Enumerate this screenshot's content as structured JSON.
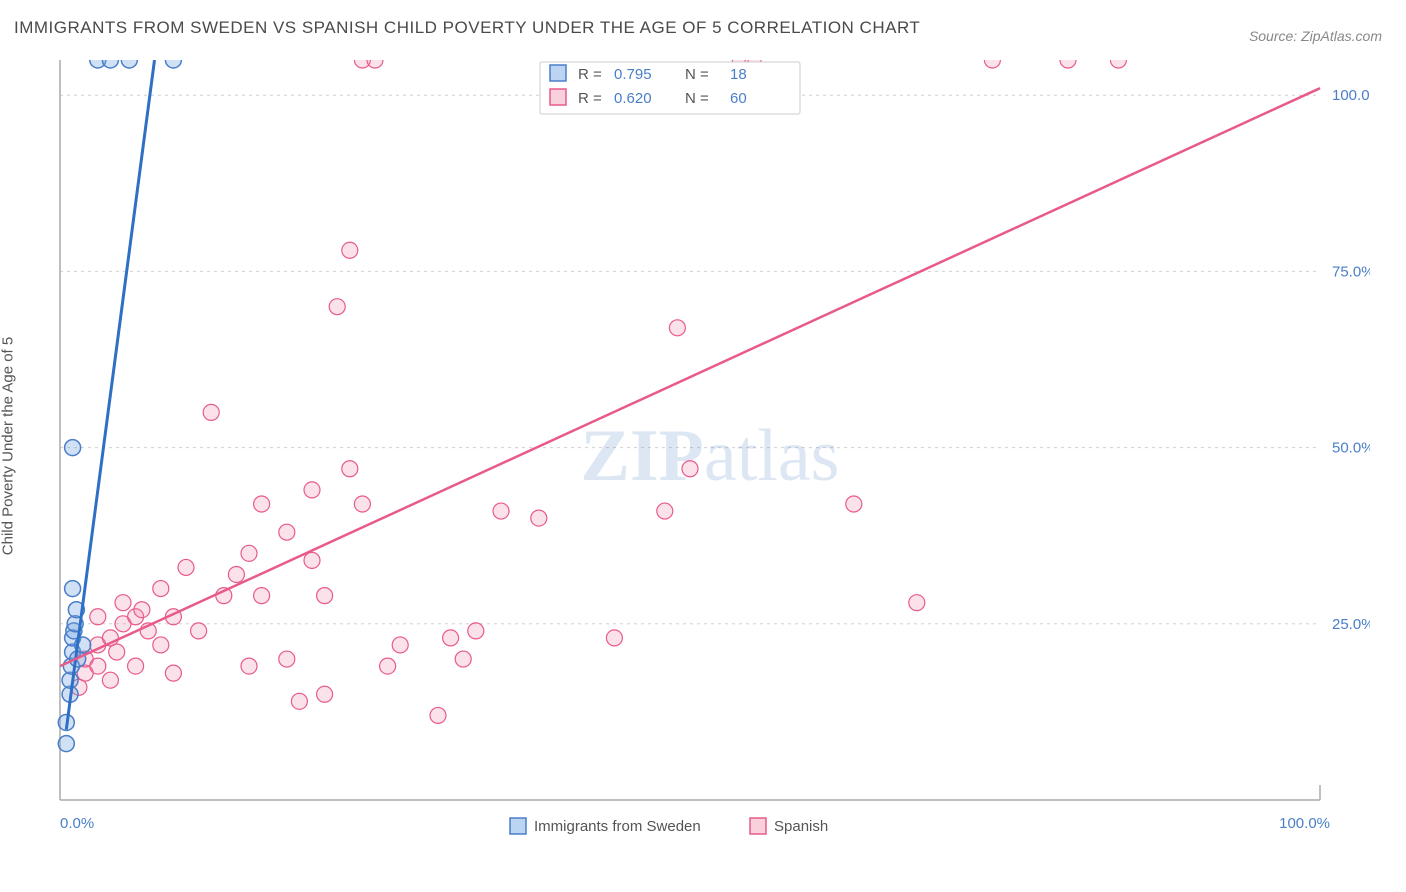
{
  "title": "IMMIGRANTS FROM SWEDEN VS SPANISH CHILD POVERTY UNDER THE AGE OF 5 CORRELATION CHART",
  "source_label": "Source: ZipAtlas.com",
  "y_axis_label": "Child Poverty Under the Age of 5",
  "watermark": {
    "part1": "ZIP",
    "part2": "atlas"
  },
  "chart": {
    "type": "scatter",
    "xlim": [
      0,
      100
    ],
    "ylim": [
      0,
      105
    ],
    "x_ticks": [
      0,
      100
    ],
    "x_tick_labels": [
      "0.0%",
      "100.0%"
    ],
    "y_ticks": [
      25,
      50,
      75,
      100
    ],
    "y_tick_labels": [
      "25.0%",
      "50.0%",
      "75.0%",
      "100.0%"
    ],
    "grid_y": [
      25,
      50,
      75,
      100
    ],
    "background_color": "#ffffff",
    "grid_color": "#d0d0d0",
    "marker_radius": 8,
    "series": [
      {
        "name": "Immigrants from Sweden",
        "color_fill": "rgba(120,170,230,0.35)",
        "color_stroke": "#4a7ec8",
        "line_color": "#2f6fc4",
        "R": 0.795,
        "N": 18,
        "regression": {
          "x1": 0.5,
          "y1": 10,
          "x2": 7.5,
          "y2": 105
        },
        "points": [
          [
            0.5,
            8
          ],
          [
            0.5,
            11
          ],
          [
            0.8,
            15
          ],
          [
            0.8,
            17
          ],
          [
            0.9,
            19
          ],
          [
            1.0,
            21
          ],
          [
            1.0,
            23
          ],
          [
            1.1,
            24
          ],
          [
            1.2,
            25
          ],
          [
            1.3,
            27
          ],
          [
            1.0,
            30
          ],
          [
            1.4,
            20
          ],
          [
            1.0,
            50
          ],
          [
            1.8,
            22
          ],
          [
            3.0,
            105
          ],
          [
            4.0,
            105
          ],
          [
            5.5,
            105
          ],
          [
            9.0,
            105
          ]
        ]
      },
      {
        "name": "Spanish",
        "color_fill": "rgba(240,140,170,0.25)",
        "color_stroke": "#e85a8a",
        "line_color": "#e85a8a",
        "R": 0.62,
        "N": 60,
        "regression": {
          "x1": 0,
          "y1": 19,
          "x2": 100,
          "y2": 101
        },
        "points": [
          [
            2,
            18
          ],
          [
            2,
            20
          ],
          [
            3,
            19
          ],
          [
            3,
            22
          ],
          [
            3,
            26
          ],
          [
            4,
            17
          ],
          [
            4,
            23
          ],
          [
            5,
            25
          ],
          [
            5,
            28
          ],
          [
            6,
            19
          ],
          [
            6,
            26
          ],
          [
            7,
            24
          ],
          [
            8,
            22
          ],
          [
            8,
            30
          ],
          [
            9,
            18
          ],
          [
            9,
            26
          ],
          [
            10,
            33
          ],
          [
            11,
            24
          ],
          [
            12,
            55
          ],
          [
            13,
            29
          ],
          [
            14,
            32
          ],
          [
            15,
            19
          ],
          [
            15,
            35
          ],
          [
            16,
            29
          ],
          [
            18,
            20
          ],
          [
            18,
            38
          ],
          [
            19,
            14
          ],
          [
            20,
            34
          ],
          [
            20,
            44
          ],
          [
            21,
            15
          ],
          [
            21,
            29
          ],
          [
            22,
            70
          ],
          [
            23,
            78
          ],
          [
            23,
            47
          ],
          [
            24,
            42
          ],
          [
            24,
            105
          ],
          [
            25,
            105
          ],
          [
            26,
            19
          ],
          [
            27,
            22
          ],
          [
            30,
            12
          ],
          [
            31,
            23
          ],
          [
            32,
            20
          ],
          [
            33,
            24
          ],
          [
            35,
            41
          ],
          [
            38,
            40
          ],
          [
            44,
            23
          ],
          [
            48,
            41
          ],
          [
            49,
            67
          ],
          [
            50,
            47
          ],
          [
            54,
            105
          ],
          [
            55,
            105
          ],
          [
            63,
            42
          ],
          [
            68,
            28
          ],
          [
            74,
            105
          ],
          [
            80,
            105
          ],
          [
            84,
            105
          ],
          [
            1.5,
            16
          ],
          [
            4.5,
            21
          ],
          [
            6.5,
            27
          ],
          [
            16,
            42
          ]
        ]
      }
    ]
  },
  "legend_top": {
    "rows": [
      {
        "swatch": "blue",
        "R": "0.795",
        "N": "18"
      },
      {
        "swatch": "pink",
        "R": "0.620",
        "N": "60"
      }
    ]
  },
  "legend_bottom": [
    {
      "swatch": "blue",
      "label": "Immigrants from Sweden"
    },
    {
      "swatch": "pink",
      "label": "Spanish"
    }
  ]
}
